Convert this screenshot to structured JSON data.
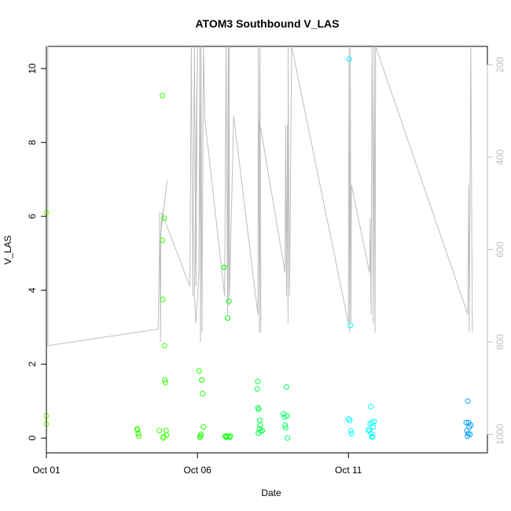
{
  "chart_data": {
    "type": "scatter",
    "title": "ATOM3 Southbound V_LAS",
    "xlabel": "Date",
    "ylabel": "V_LAS",
    "x_unit": "days",
    "xlim": [
      0,
      14.6
    ],
    "ylim": [
      -0.4,
      10.6
    ],
    "x_ticks": [
      {
        "value": 0,
        "label": "Oct 01"
      },
      {
        "value": 5,
        "label": "Oct 06"
      },
      {
        "value": 10,
        "label": "Oct 11"
      }
    ],
    "y_ticks": [
      0,
      2,
      4,
      6,
      8,
      10
    ],
    "y2_ticks": [
      200,
      400,
      600,
      800,
      1000
    ],
    "y2lim_reversed": [
      1040,
      160
    ],
    "colors": {
      "axis": "#000000",
      "altitude_line": "#bebebe",
      "right_axis": "#bebebe"
    },
    "points": [
      {
        "x": 0.0,
        "y": 6.1,
        "color": "#80ff00"
      },
      {
        "x": 0.0,
        "y": 0.6,
        "color": "#80ff00"
      },
      {
        "x": 0.0,
        "y": 0.38,
        "color": "#80ff00"
      },
      {
        "x": 3.0,
        "y": 0.25,
        "color": "#33ff00"
      },
      {
        "x": 3.02,
        "y": 0.22,
        "color": "#33ff00"
      },
      {
        "x": 3.04,
        "y": 0.12,
        "color": "#33ff00"
      },
      {
        "x": 3.06,
        "y": 0.05,
        "color": "#33ff00"
      },
      {
        "x": 3.74,
        "y": 0.2,
        "color": "#33ff00"
      },
      {
        "x": 3.84,
        "y": 9.27,
        "color": "#33ff00"
      },
      {
        "x": 3.84,
        "y": 5.35,
        "color": "#33ff00"
      },
      {
        "x": 3.85,
        "y": 3.75,
        "color": "#33ff00"
      },
      {
        "x": 3.87,
        "y": 0.0,
        "color": "#33ff00"
      },
      {
        "x": 3.88,
        "y": 0.04,
        "color": "#33ff00"
      },
      {
        "x": 3.9,
        "y": 5.95,
        "color": "#33ff00"
      },
      {
        "x": 3.91,
        "y": 2.5,
        "color": "#33ff00"
      },
      {
        "x": 3.92,
        "y": 1.57,
        "color": "#33ff00"
      },
      {
        "x": 3.94,
        "y": 1.5,
        "color": "#33ff00"
      },
      {
        "x": 3.96,
        "y": 0.2,
        "color": "#33ff00"
      },
      {
        "x": 3.98,
        "y": 0.08,
        "color": "#33ff00"
      },
      {
        "x": 5.06,
        "y": 1.82,
        "color": "#1aff00"
      },
      {
        "x": 5.08,
        "y": 0.02,
        "color": "#1aff00"
      },
      {
        "x": 5.1,
        "y": 0.05,
        "color": "#1aff00"
      },
      {
        "x": 5.12,
        "y": 0.1,
        "color": "#1aff00"
      },
      {
        "x": 5.14,
        "y": 1.57,
        "color": "#1aff00"
      },
      {
        "x": 5.17,
        "y": 1.2,
        "color": "#1aff00"
      },
      {
        "x": 5.2,
        "y": 0.3,
        "color": "#1aff00"
      },
      {
        "x": 5.88,
        "y": 4.62,
        "color": "#00ff00"
      },
      {
        "x": 5.92,
        "y": 0.05,
        "color": "#00ff00"
      },
      {
        "x": 5.95,
        "y": 0.02,
        "color": "#00ff00"
      },
      {
        "x": 5.98,
        "y": 0.05,
        "color": "#00ff00"
      },
      {
        "x": 6.0,
        "y": 3.25,
        "color": "#00ff00"
      },
      {
        "x": 6.04,
        "y": 3.7,
        "color": "#00ff00"
      },
      {
        "x": 6.06,
        "y": 0.02,
        "color": "#00ff00"
      },
      {
        "x": 6.09,
        "y": 0.05,
        "color": "#00ff00"
      },
      {
        "x": 7.0,
        "y": 0.82,
        "color": "#00ff40"
      },
      {
        "x": 7.03,
        "y": 0.78,
        "color": "#00ff40"
      },
      {
        "x": 7.06,
        "y": 0.48,
        "color": "#00ff40"
      },
      {
        "x": 7.0,
        "y": 1.53,
        "color": "#00ff40"
      },
      {
        "x": 6.98,
        "y": 1.33,
        "color": "#00ff40"
      },
      {
        "x": 7.05,
        "y": 0.25,
        "color": "#00ff40"
      },
      {
        "x": 7.08,
        "y": 0.35,
        "color": "#00ff40"
      },
      {
        "x": 7.1,
        "y": 0.18,
        "color": "#00ff40"
      },
      {
        "x": 7.02,
        "y": 0.13,
        "color": "#00ff40"
      },
      {
        "x": 7.15,
        "y": 0.2,
        "color": "#00ff40"
      },
      {
        "x": 7.85,
        "y": 0.65,
        "color": "#00ff60"
      },
      {
        "x": 7.88,
        "y": 0.57,
        "color": "#00ff60"
      },
      {
        "x": 7.9,
        "y": 0.35,
        "color": "#00ff60"
      },
      {
        "x": 7.92,
        "y": 0.28,
        "color": "#00ff60"
      },
      {
        "x": 7.95,
        "y": 1.38,
        "color": "#00ff60"
      },
      {
        "x": 7.97,
        "y": 0.6,
        "color": "#00ff60"
      },
      {
        "x": 7.98,
        "y": 0.0,
        "color": "#00ff60"
      },
      {
        "x": 10.02,
        "y": 10.25,
        "color": "#00ffff"
      },
      {
        "x": 10.06,
        "y": 3.05,
        "color": "#00ffff"
      },
      {
        "x": 10.0,
        "y": 0.52,
        "color": "#00ffff"
      },
      {
        "x": 10.04,
        "y": 0.48,
        "color": "#00ffff"
      },
      {
        "x": 10.08,
        "y": 0.2,
        "color": "#00ffff"
      },
      {
        "x": 10.1,
        "y": 0.12,
        "color": "#00ffff"
      },
      {
        "x": 10.65,
        "y": 0.22,
        "color": "#00ffff"
      },
      {
        "x": 10.7,
        "y": 0.2,
        "color": "#00ffff"
      },
      {
        "x": 10.72,
        "y": 0.38,
        "color": "#00ffff"
      },
      {
        "x": 10.74,
        "y": 0.85,
        "color": "#00ffff"
      },
      {
        "x": 10.75,
        "y": 0.12,
        "color": "#00ffff"
      },
      {
        "x": 10.78,
        "y": 0.42,
        "color": "#00ffff"
      },
      {
        "x": 10.8,
        "y": 0.05,
        "color": "#00ffff"
      },
      {
        "x": 10.82,
        "y": 0.3,
        "color": "#00ffff"
      },
      {
        "x": 10.85,
        "y": 0.45,
        "color": "#00ffff"
      },
      {
        "x": 10.78,
        "y": 0.02,
        "color": "#00ffff"
      },
      {
        "x": 13.95,
        "y": 1.0,
        "color": "#00a0ff"
      },
      {
        "x": 13.9,
        "y": 0.42,
        "color": "#00a0ff"
      },
      {
        "x": 13.98,
        "y": 0.42,
        "color": "#00a0ff"
      },
      {
        "x": 14.0,
        "y": 0.3,
        "color": "#00a0ff"
      },
      {
        "x": 14.05,
        "y": 0.35,
        "color": "#00a0ff"
      },
      {
        "x": 13.92,
        "y": 0.2,
        "color": "#00a0ff"
      },
      {
        "x": 13.96,
        "y": 0.12,
        "color": "#00a0ff"
      },
      {
        "x": 14.02,
        "y": 0.1,
        "color": "#00a0ff"
      },
      {
        "x": 13.94,
        "y": 0.05,
        "color": "#00a0ff"
      }
    ],
    "altitude_series": {
      "axis": "right",
      "reversed": true,
      "points": [
        [
          0.0,
          160
        ],
        [
          0.0,
          160
        ],
        [
          0.05,
          160
        ],
        [
          0.05,
          808
        ],
        [
          3.7,
          772
        ],
        [
          3.75,
          560
        ],
        [
          3.75,
          520
        ],
        [
          3.78,
          800
        ],
        [
          3.79,
          560
        ],
        [
          4.0,
          450
        ],
        [
          3.8,
          560
        ],
        [
          3.82,
          520
        ],
        [
          4.75,
          680
        ],
        [
          4.8,
          160
        ],
        [
          4.85,
          700
        ],
        [
          4.9,
          160
        ],
        [
          4.95,
          680
        ],
        [
          5.0,
          160
        ],
        [
          4.9,
          700
        ],
        [
          4.95,
          760
        ],
        [
          5.05,
          650
        ],
        [
          5.08,
          160
        ],
        [
          5.1,
          800
        ],
        [
          5.12,
          160
        ],
        [
          5.15,
          780
        ],
        [
          5.2,
          160
        ],
        [
          5.25,
          320
        ],
        [
          5.9,
          700
        ],
        [
          5.95,
          160
        ],
        [
          6.0,
          740
        ],
        [
          6.02,
          160
        ],
        [
          6.04,
          720
        ],
        [
          6.0,
          720
        ],
        [
          6.05,
          160
        ],
        [
          6.06,
          700
        ],
        [
          6.2,
          310
        ],
        [
          7.0,
          740
        ],
        [
          7.02,
          160
        ],
        [
          7.05,
          780
        ],
        [
          7.07,
          160
        ],
        [
          7.1,
          780
        ],
        [
          7.05,
          320
        ],
        [
          7.9,
          650
        ],
        [
          7.92,
          330
        ],
        [
          7.95,
          700
        ],
        [
          7.98,
          330
        ],
        [
          8.0,
          760
        ],
        [
          8.0,
          160
        ],
        [
          8.05,
          700
        ],
        [
          8.1,
          320
        ],
        [
          8.12,
          160
        ],
        [
          10.0,
          760
        ],
        [
          10.02,
          160
        ],
        [
          10.04,
          780
        ],
        [
          10.06,
          160
        ],
        [
          10.08,
          760
        ],
        [
          10.1,
          460
        ],
        [
          10.7,
          650
        ],
        [
          10.72,
          530
        ],
        [
          10.75,
          740
        ],
        [
          10.78,
          160
        ],
        [
          10.8,
          340
        ],
        [
          10.82,
          760
        ],
        [
          10.85,
          160
        ],
        [
          10.88,
          780
        ],
        [
          10.9,
          160
        ],
        [
          13.95,
          740
        ],
        [
          13.98,
          460
        ],
        [
          14.0,
          780
        ],
        [
          14.05,
          160
        ],
        [
          14.1,
          780
        ]
      ]
    }
  }
}
